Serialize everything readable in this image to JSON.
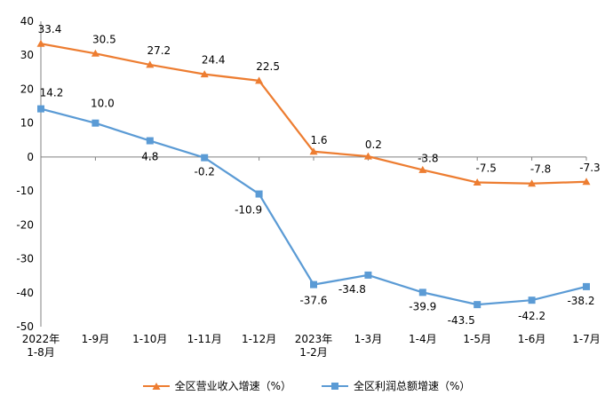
{
  "chart_data": {
    "type": "line",
    "title": "",
    "xlabel": "",
    "ylabel": "",
    "ylim": [
      -50,
      40
    ],
    "yticks": [
      40,
      30,
      20,
      10,
      0,
      -10,
      -20,
      -30,
      -40,
      -50
    ],
    "grid": false,
    "legend_position": "bottom",
    "categories": [
      [
        "2022年",
        "1-8月"
      ],
      [
        "1-9月"
      ],
      [
        "1-10月"
      ],
      [
        "1-11月"
      ],
      [
        "1-12月"
      ],
      [
        "2023年",
        "1-2月"
      ],
      [
        "1-3月"
      ],
      [
        "1-4月"
      ],
      [
        "1-5月"
      ],
      [
        "1-6月"
      ],
      [
        "1-7月"
      ]
    ],
    "series": [
      {
        "name": "全区营业收入增速（%）",
        "color": "#ED7D31",
        "marker": "triangle",
        "values": [
          33.4,
          30.5,
          27.2,
          24.4,
          22.5,
          1.6,
          0.2,
          -3.8,
          -7.5,
          -7.8,
          -7.3
        ],
        "labels": [
          "33.4",
          "30.5",
          "27.2",
          "24.4",
          "22.5",
          "1.6",
          "0.2",
          "-3.8",
          "-7.5",
          "-7.8",
          "-7.3"
        ]
      },
      {
        "name": "全区利润总额增速（%）",
        "color": "#5B9BD5",
        "marker": "square",
        "values": [
          14.2,
          10.0,
          4.8,
          -0.2,
          -10.9,
          -37.6,
          -34.8,
          -39.9,
          -43.5,
          -42.2,
          -38.2
        ],
        "labels": [
          "14.2",
          "10.0",
          "4.8",
          "-0.2",
          "-10.9",
          "-37.6",
          "-34.8",
          "-39.9",
          "-43.5",
          "-42.2",
          "-38.2"
        ]
      }
    ]
  }
}
